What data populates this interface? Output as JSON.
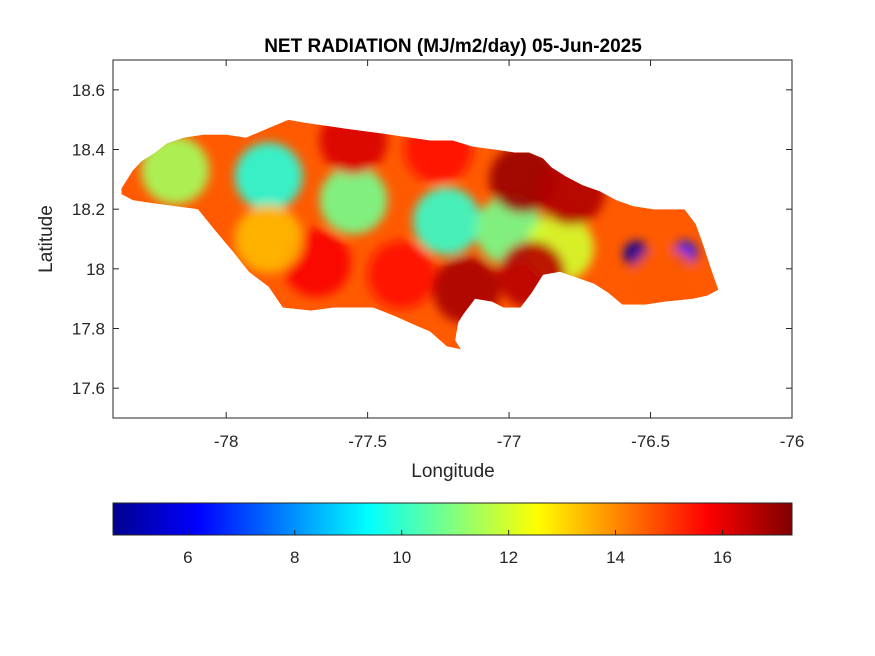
{
  "chart_data": {
    "type": "heatmap",
    "title": "NET RADIATION (MJ/m2/day) 05-Jun-2025",
    "xlabel": "Longitude",
    "ylabel": "Latitude",
    "xlim": [
      -78.4,
      -76
    ],
    "ylim": [
      17.5,
      18.7
    ],
    "xticks": [
      -78,
      -77.5,
      -77,
      -76.5,
      -76
    ],
    "xtick_labels": [
      "-78",
      "-77.5",
      "-77",
      "-76.5",
      "-76"
    ],
    "yticks": [
      17.6,
      17.8,
      18,
      18.2,
      18.4,
      18.6
    ],
    "ytick_labels": [
      "17.6",
      "17.8",
      "18",
      "18.2",
      "18.4",
      "18.6"
    ],
    "colormap": "jet",
    "colorbar": {
      "location": "south",
      "range": [
        4.6,
        17.3
      ],
      "ticks": [
        6,
        8,
        10,
        12,
        14,
        16
      ],
      "tick_labels": [
        "6",
        "8",
        "10",
        "12",
        "14",
        "16"
      ]
    },
    "outline": [
      [
        -78.37,
        18.27
      ],
      [
        -78.33,
        18.33
      ],
      [
        -78.3,
        18.36
      ],
      [
        -78.25,
        18.39
      ],
      [
        -78.21,
        18.42
      ],
      [
        -78.15,
        18.44
      ],
      [
        -78.08,
        18.45
      ],
      [
        -78.0,
        18.45
      ],
      [
        -77.93,
        18.44
      ],
      [
        -77.88,
        18.46
      ],
      [
        -77.83,
        18.48
      ],
      [
        -77.78,
        18.5
      ],
      [
        -77.72,
        18.49
      ],
      [
        -77.65,
        18.48
      ],
      [
        -77.58,
        18.47
      ],
      [
        -77.5,
        18.46
      ],
      [
        -77.42,
        18.45
      ],
      [
        -77.35,
        18.44
      ],
      [
        -77.28,
        18.43
      ],
      [
        -77.2,
        18.43
      ],
      [
        -77.13,
        18.41
      ],
      [
        -77.05,
        18.4
      ],
      [
        -76.98,
        18.39
      ],
      [
        -76.93,
        18.39
      ],
      [
        -76.88,
        18.37
      ],
      [
        -76.85,
        18.34
      ],
      [
        -76.8,
        18.31
      ],
      [
        -76.74,
        18.28
      ],
      [
        -76.68,
        18.26
      ],
      [
        -76.62,
        18.23
      ],
      [
        -76.56,
        18.21
      ],
      [
        -76.49,
        18.2
      ],
      [
        -76.43,
        18.2
      ],
      [
        -76.38,
        18.2
      ],
      [
        -76.34,
        18.15
      ],
      [
        -76.31,
        18.07
      ],
      [
        -76.29,
        18.01
      ],
      [
        -76.26,
        17.93
      ],
      [
        -76.3,
        17.91
      ],
      [
        -76.35,
        17.9
      ],
      [
        -76.45,
        17.89
      ],
      [
        -76.52,
        17.88
      ],
      [
        -76.6,
        17.88
      ],
      [
        -76.65,
        17.92
      ],
      [
        -76.7,
        17.95
      ],
      [
        -76.76,
        17.97
      ],
      [
        -76.82,
        17.99
      ],
      [
        -76.88,
        17.98
      ],
      [
        -76.92,
        17.92
      ],
      [
        -76.96,
        17.87
      ],
      [
        -77.02,
        17.87
      ],
      [
        -77.06,
        17.89
      ],
      [
        -77.12,
        17.9
      ],
      [
        -77.16,
        17.85
      ],
      [
        -77.18,
        17.82
      ],
      [
        -77.19,
        17.76
      ],
      [
        -77.17,
        17.73
      ],
      [
        -77.22,
        17.74
      ],
      [
        -77.28,
        17.79
      ],
      [
        -77.33,
        17.81
      ],
      [
        -77.4,
        17.84
      ],
      [
        -77.48,
        17.87
      ],
      [
        -77.55,
        17.87
      ],
      [
        -77.62,
        17.87
      ],
      [
        -77.7,
        17.86
      ],
      [
        -77.8,
        17.87
      ],
      [
        -77.85,
        17.94
      ],
      [
        -77.92,
        17.99
      ],
      [
        -77.97,
        18.05
      ],
      [
        -78.04,
        18.13
      ],
      [
        -78.1,
        18.2
      ],
      [
        -78.18,
        18.21
      ],
      [
        -78.26,
        18.22
      ],
      [
        -78.33,
        18.23
      ],
      [
        -78.37,
        18.25
      ]
    ],
    "field_features": [
      {
        "lon": -77.85,
        "lat": 18.31,
        "value": 9.8
      },
      {
        "lon": -77.55,
        "lat": 18.23,
        "value": 10.8
      },
      {
        "lon": -77.22,
        "lat": 18.16,
        "value": 10.0
      },
      {
        "lon": -77.0,
        "lat": 18.13,
        "value": 10.8
      },
      {
        "lon": -76.82,
        "lat": 18.07,
        "value": 12.0
      },
      {
        "lon": -78.18,
        "lat": 18.33,
        "value": 11.4
      },
      {
        "lon": -77.68,
        "lat": 18.02,
        "value": 15.8
      },
      {
        "lon": -77.38,
        "lat": 17.98,
        "value": 15.5
      },
      {
        "lon": -77.15,
        "lat": 17.93,
        "value": 16.8
      },
      {
        "lon": -76.92,
        "lat": 17.98,
        "value": 16.6
      },
      {
        "lon": -76.95,
        "lat": 18.3,
        "value": 17.0
      },
      {
        "lon": -76.78,
        "lat": 18.26,
        "value": 16.7
      },
      {
        "lon": -77.55,
        "lat": 18.43,
        "value": 16.2
      },
      {
        "lon": -77.25,
        "lat": 18.4,
        "value": 15.5
      },
      {
        "lon": -76.55,
        "lat": 18.05,
        "value": 5.0
      },
      {
        "lon": -76.38,
        "lat": 18.05,
        "value": 6.5
      },
      {
        "lon": -76.45,
        "lat": 17.96,
        "value": 14.6
      },
      {
        "lon": -77.85,
        "lat": 18.1,
        "value": 13.4
      }
    ]
  }
}
